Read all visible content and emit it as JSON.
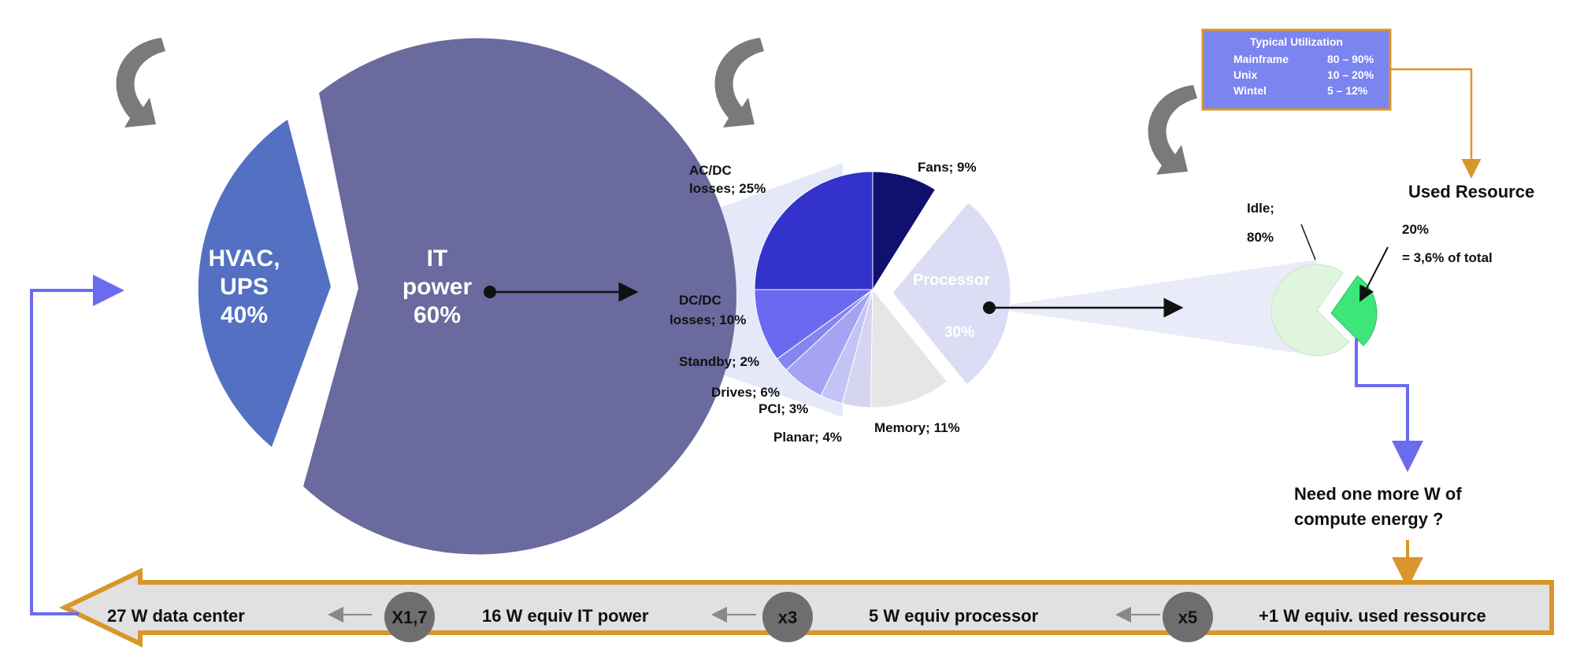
{
  "colors": {
    "hvac": "#5470c3",
    "it_power": "#6a6a9e",
    "component_blue": "#3333cc",
    "processor": "#dcdcf5",
    "idle": "#dff5dd",
    "used": "#3ee67a",
    "flow_orange": "#d9962a",
    "flow_blue": "#6b6bf0",
    "bottom_band": "#e1e1e1",
    "multiplier_circle": "#6e6e6e",
    "utilization_box": "#7b85f0"
  },
  "main_pie": {
    "hvac_label": [
      "HVAC,",
      "UPS",
      "40%"
    ],
    "it_label": [
      "IT",
      "power",
      "60%"
    ]
  },
  "components": {
    "acdc": [
      "AC/DC",
      "losses; 25%"
    ],
    "fans": "Fans; 9%",
    "dcdc": [
      "DC/DC",
      "losses; 10%"
    ],
    "standby": "Standby; 2%",
    "drives": "Drives; 6%",
    "pci": "PCI; 3%",
    "planar": "Planar; 4%",
    "memory": "Memory; 11%",
    "processor": [
      "Processor",
      "30%"
    ]
  },
  "utilization": {
    "title": "Typical Utilization",
    "rows": [
      {
        "name": "Mainframe",
        "range": "80 – 90%"
      },
      {
        "name": "Unix",
        "range": "10 – 20%"
      },
      {
        "name": "Wintel",
        "range": "5 – 12%"
      }
    ]
  },
  "processor_use": {
    "used_resource": "Used Resource",
    "idle": [
      "Idle;",
      "80%"
    ],
    "used": [
      "20%",
      "= 3,6% of total"
    ]
  },
  "question": [
    "Need one more W of",
    "compute energy ?"
  ],
  "flow": {
    "steps": [
      "27 W data center",
      "16 W equiv IT power",
      "5 W equiv processor",
      "+1 W equiv. used ressource"
    ],
    "multipliers": [
      "X1,7",
      "x3",
      "x5"
    ]
  }
}
